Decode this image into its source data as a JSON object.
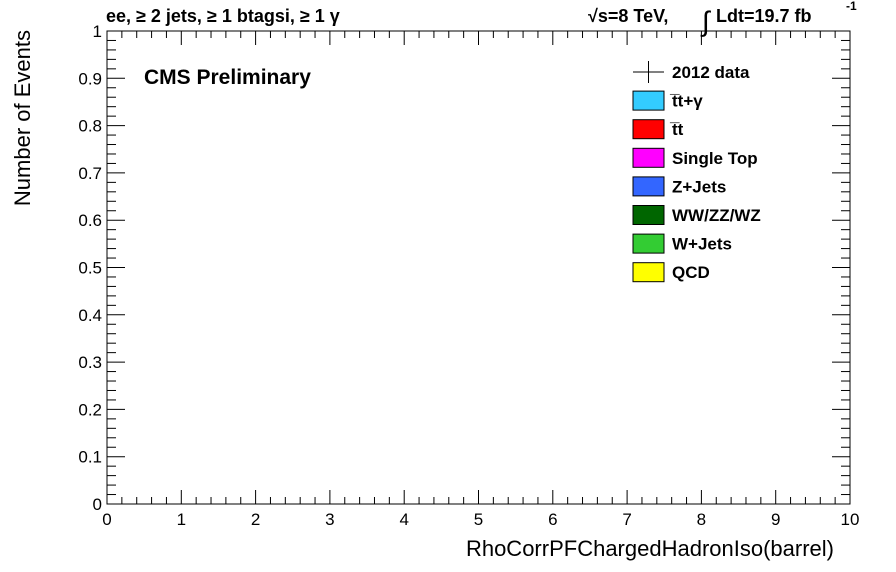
{
  "header": {
    "selection": "ee, ≥ 2 jets, ≥ 1 btagsi, ≥ 1 γ",
    "sqrt_s": "√s=8 TeV,",
    "lumi": "Ldt=19.7 fb",
    "lumi_exp": "-1"
  },
  "labels": {
    "cms": "CMS Preliminary"
  },
  "chart_data": {
    "type": "bar",
    "title": "",
    "xlabel": "RhoCorrPFChargedHadronIso(barrel)",
    "ylabel": "Number of Events",
    "xlim": [
      0,
      10
    ],
    "ylim": [
      0,
      1
    ],
    "x_ticks": [
      "0",
      "1",
      "2",
      "3",
      "4",
      "5",
      "6",
      "7",
      "8",
      "9",
      "10"
    ],
    "y_ticks": [
      "0",
      "0.1",
      "0.2",
      "0.3",
      "0.4",
      "0.5",
      "0.6",
      "0.7",
      "0.8",
      "0.9",
      "1"
    ],
    "grid": false,
    "legend_position": "top-right",
    "series": [
      {
        "name": "2012 data",
        "kind": "data-points",
        "color": "#000000",
        "values": []
      },
      {
        "name": "t̅t+γ",
        "kind": "stack",
        "color": "#33ccff",
        "values": []
      },
      {
        "name": "t̅t",
        "kind": "stack",
        "color": "#ff0000",
        "values": []
      },
      {
        "name": "Single Top",
        "kind": "stack",
        "color": "#ff00ff",
        "values": []
      },
      {
        "name": "Z+Jets",
        "kind": "stack",
        "color": "#3366ff",
        "values": []
      },
      {
        "name": "WW/ZZ/WZ",
        "kind": "stack",
        "color": "#006600",
        "values": []
      },
      {
        "name": "W+Jets",
        "kind": "stack",
        "color": "#33cc33",
        "values": []
      },
      {
        "name": "QCD",
        "kind": "stack",
        "color": "#ffff00",
        "values": []
      }
    ]
  }
}
